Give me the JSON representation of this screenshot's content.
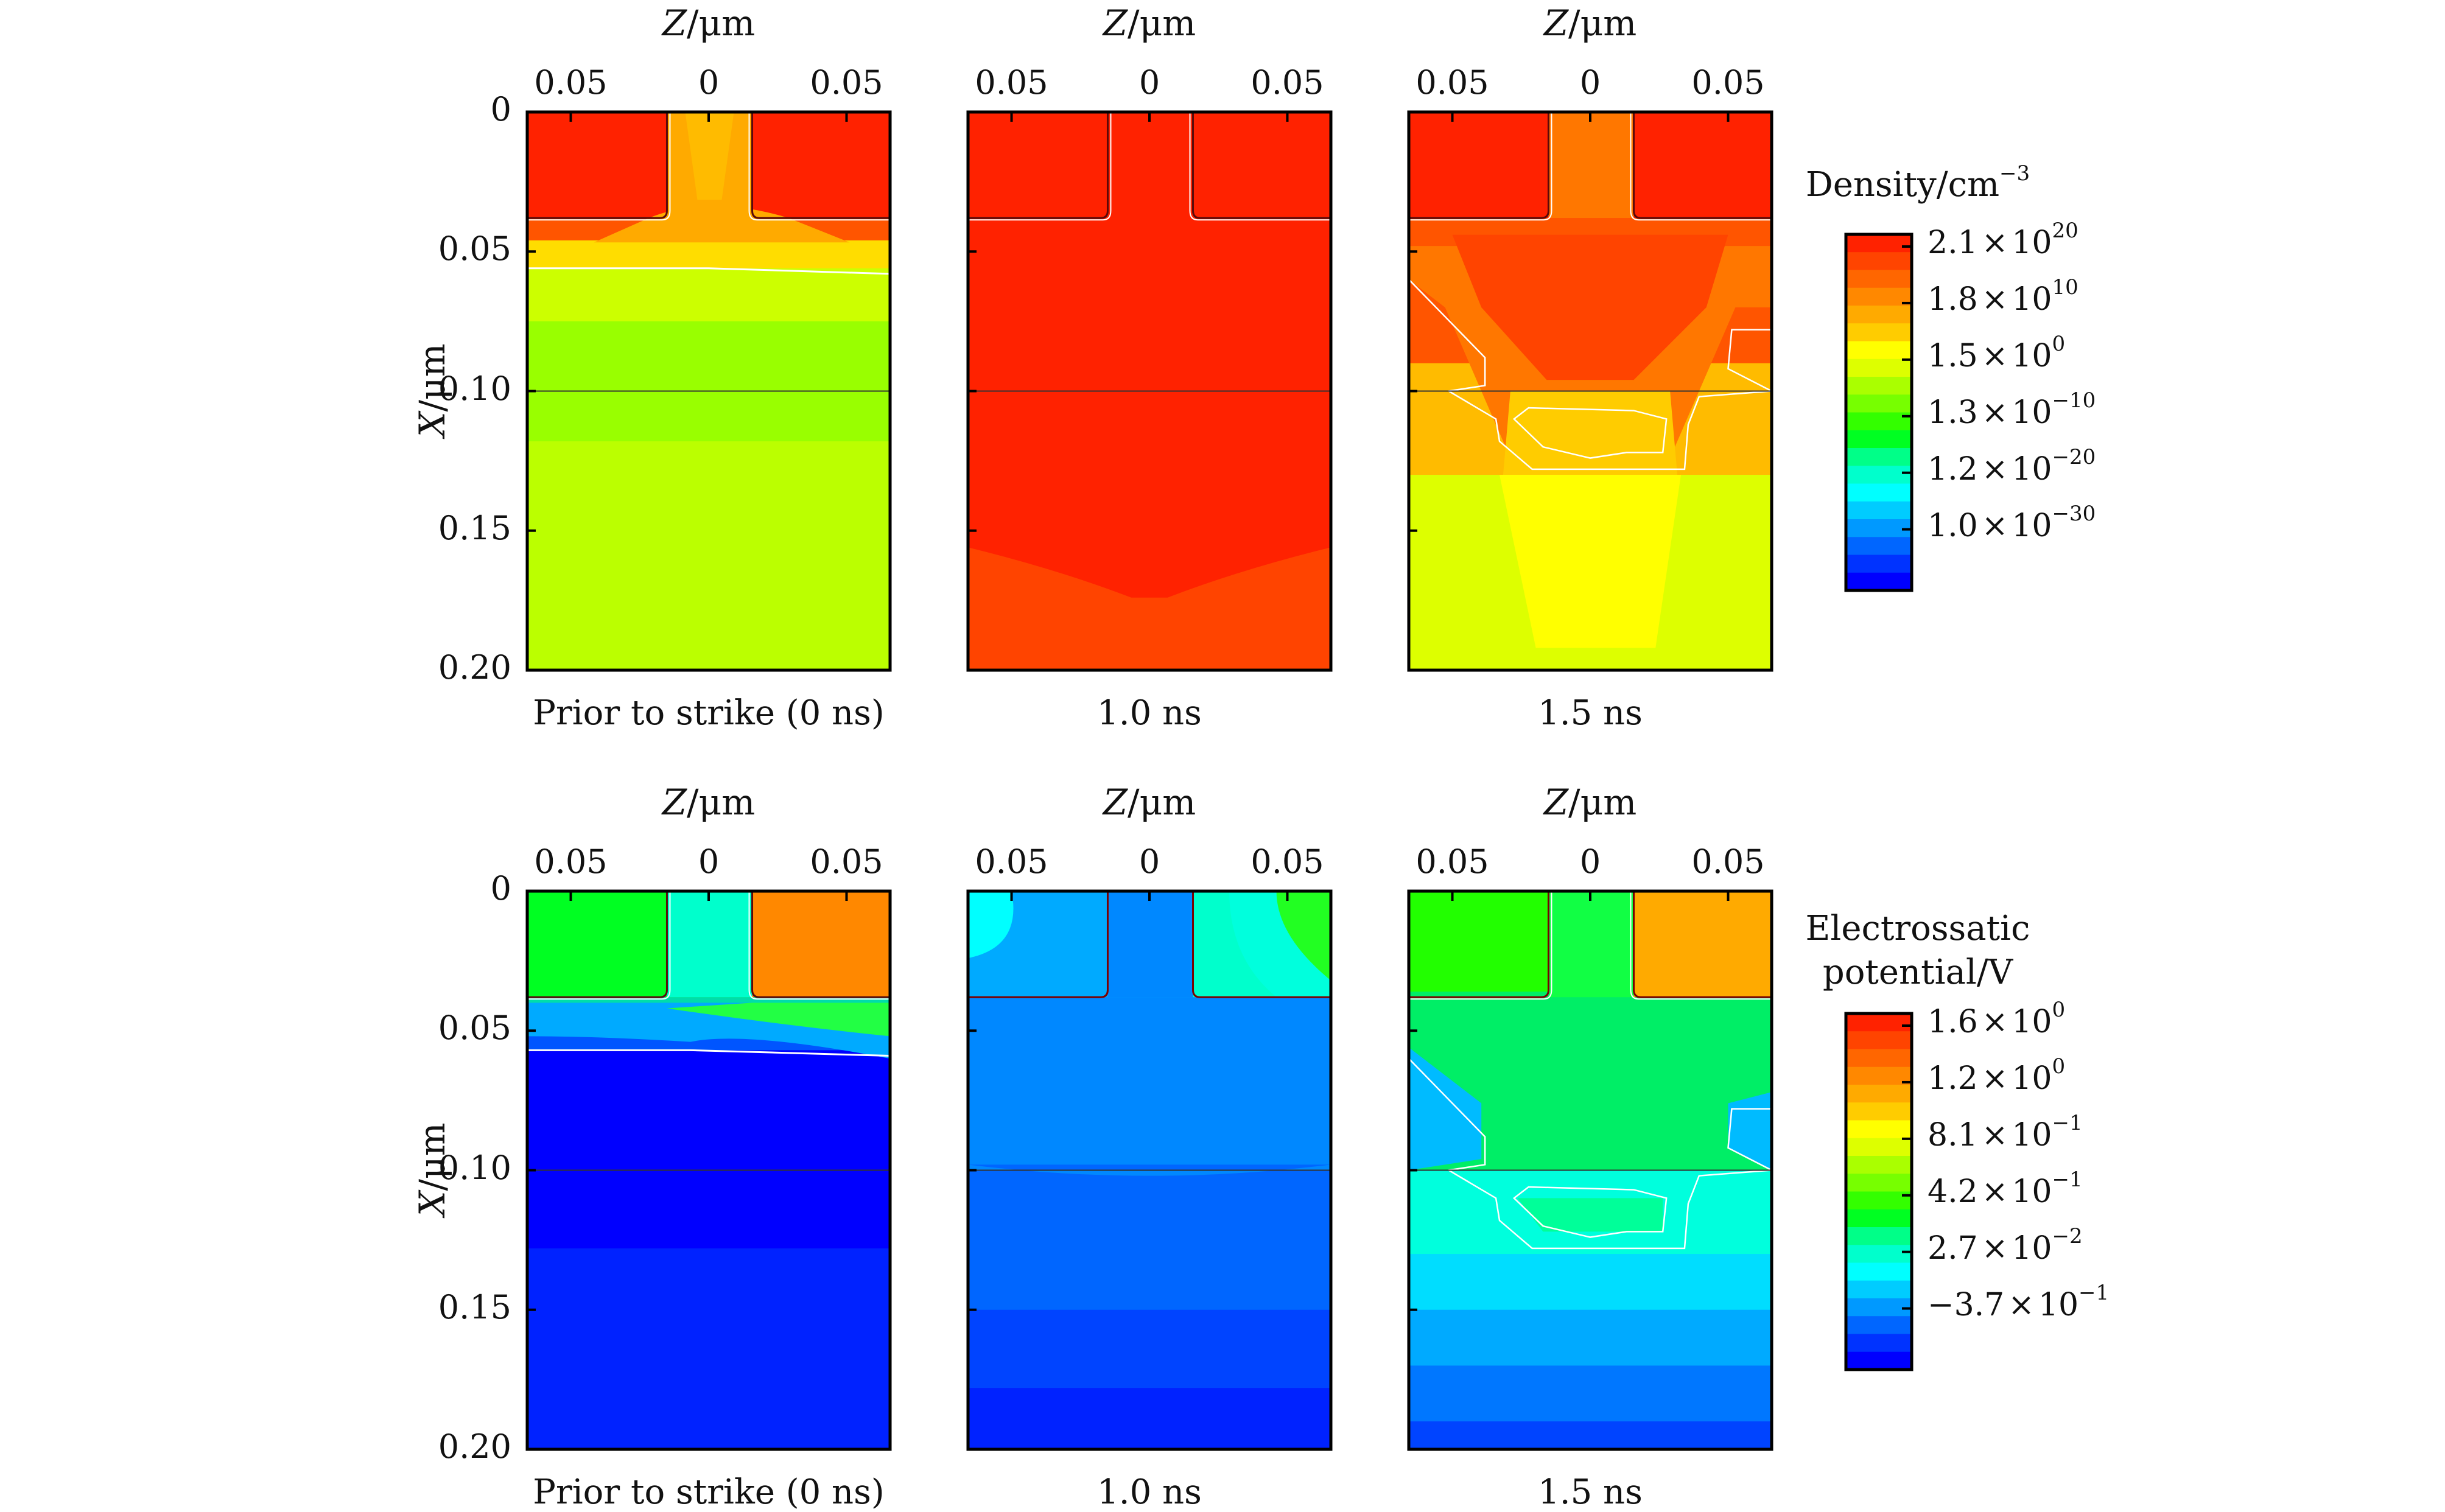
{
  "chart_data": [
    {
      "type": "heatmap",
      "title": "Density",
      "row": "top",
      "colorbar": {
        "label": "Density/cm",
        "label_exponent": "−3",
        "ticks": [
          {
            "mantissa": "2.1",
            "exponent": "20"
          },
          {
            "mantissa": "1.8",
            "exponent": "10"
          },
          {
            "mantissa": "1.5",
            "exponent": "0"
          },
          {
            "mantissa": "1.3",
            "exponent": "−10"
          },
          {
            "mantissa": "1.2",
            "exponent": "−20"
          },
          {
            "mantissa": "1.0",
            "exponent": "−30"
          }
        ],
        "colors": [
          "#ff2200",
          "#ff4400",
          "#ff6600",
          "#ff8800",
          "#ffaa00",
          "#ffcc00",
          "#ffff00",
          "#ddff00",
          "#aaff00",
          "#77ff00",
          "#33ff00",
          "#00ff22",
          "#00ff88",
          "#00ffcc",
          "#00ffff",
          "#00ccff",
          "#0099ff",
          "#0066ff",
          "#0033ff",
          "#0000ff"
        ]
      },
      "xlabel": "Z/μm",
      "ylabel": "X/μm",
      "xticks": [
        "0.05",
        "0",
        "0.05"
      ],
      "yticks": [
        "0",
        "0.05",
        "0.10",
        "0.15",
        "0.20"
      ],
      "ylim": [
        0,
        0.2
      ],
      "panels": [
        {
          "caption": "Prior to strike (0 ns)",
          "state": "prior",
          "bands": [
            {
              "x_from": 0.0,
              "x_to": 0.038,
              "color": "#ff2200",
              "region": "source-drain"
            },
            {
              "x_from": 0.038,
              "x_to": 0.046,
              "color": "#ff5500"
            },
            {
              "x_from": 0.046,
              "x_to": 0.056,
              "color": "#ffdd00"
            },
            {
              "x_from": 0.056,
              "x_to": 0.075,
              "color": "#ccff00"
            },
            {
              "x_from": 0.075,
              "x_to": 0.118,
              "color": "#99ff00"
            },
            {
              "x_from": 0.118,
              "x_to": 0.2,
              "color": "#bbff00"
            }
          ],
          "channel_color": "#ffaa00"
        },
        {
          "caption": "1.0 ns",
          "state": "1.0ns",
          "bands": [
            {
              "x_from": 0.0,
              "x_to": 0.155,
              "color": "#ff2200"
            },
            {
              "x_from": 0.155,
              "x_to": 0.2,
              "color": "#ff4400"
            }
          ],
          "channel_color": "#ff2200"
        },
        {
          "caption": "1.5 ns",
          "state": "1.5ns",
          "bands": [
            {
              "x_from": 0.0,
              "x_to": 0.038,
              "color": "#ff2200"
            },
            {
              "x_from": 0.038,
              "x_to": 0.09,
              "color": "#ff5500"
            },
            {
              "x_from": 0.09,
              "x_to": 0.13,
              "color": "#ffbb00"
            },
            {
              "x_from": 0.13,
              "x_to": 0.2,
              "color": "#ddff00"
            }
          ],
          "channel_color": "#ff7700"
        }
      ]
    },
    {
      "type": "heatmap",
      "title": "Electrostatic potential",
      "row": "bottom",
      "colorbar": {
        "label_line1": "Electrossatic",
        "label_line2": "potential/V",
        "ticks": [
          {
            "mantissa": "1.6",
            "exponent": "0"
          },
          {
            "mantissa": "1.2",
            "exponent": "0"
          },
          {
            "mantissa": "8.1",
            "exponent": "−1"
          },
          {
            "mantissa": "4.2",
            "exponent": "−1"
          },
          {
            "mantissa": "2.7",
            "exponent": "−2"
          },
          {
            "mantissa": "−3.7",
            "exponent": "−1"
          }
        ],
        "colors": [
          "#ff2200",
          "#ff4400",
          "#ff6600",
          "#ff8800",
          "#ffaa00",
          "#ffcc00",
          "#ffff00",
          "#ddff00",
          "#aaff00",
          "#77ff00",
          "#33ff00",
          "#00ff22",
          "#00ff88",
          "#00ffcc",
          "#00ffff",
          "#00ccff",
          "#0099ff",
          "#0066ff",
          "#0033ff",
          "#0000ff"
        ]
      },
      "xlabel": "Z/μm",
      "ylabel": "X/μm",
      "xticks": [
        "0.05",
        "0",
        "0.05"
      ],
      "yticks": [
        "0",
        "0.05",
        "0.10",
        "0.15",
        "0.20"
      ],
      "ylim": [
        0,
        0.2
      ],
      "panels": [
        {
          "caption": "Prior to strike (0 ns)",
          "state": "prior",
          "bands": [
            {
              "x_from": 0.0,
              "x_to": 0.038,
              "color": "#00ff22",
              "region": "left"
            },
            {
              "x_from": 0.038,
              "x_to": 0.045,
              "color": "#00ddaa"
            },
            {
              "x_from": 0.045,
              "x_to": 0.057,
              "color": "#0055ff"
            },
            {
              "x_from": 0.057,
              "x_to": 0.128,
              "color": "#0000ff"
            },
            {
              "x_from": 0.128,
              "x_to": 0.2,
              "color": "#0022ff"
            }
          ],
          "right_color": "#ff8800",
          "channel_color": "#00ffcc"
        },
        {
          "caption": "1.0 ns",
          "state": "1.0ns",
          "bands": [
            {
              "x_from": 0.0,
              "x_to": 0.038,
              "color": "#00aaff"
            },
            {
              "x_from": 0.038,
              "x_to": 0.098,
              "color": "#0088ff"
            },
            {
              "x_from": 0.098,
              "x_to": 0.15,
              "color": "#0066ff"
            },
            {
              "x_from": 0.15,
              "x_to": 0.178,
              "color": "#0044ff"
            },
            {
              "x_from": 0.178,
              "x_to": 0.2,
              "color": "#0022ff"
            }
          ],
          "right_color": "#00ffcc",
          "channel_color": "#0088ff"
        },
        {
          "caption": "1.5 ns",
          "state": "1.5ns",
          "bands": [
            {
              "x_from": 0.0,
              "x_to": 0.036,
              "color": "#22ff00"
            },
            {
              "x_from": 0.036,
              "x_to": 0.1,
              "color": "#00ee66"
            },
            {
              "x_from": 0.1,
              "x_to": 0.13,
              "color": "#00ffdd"
            },
            {
              "x_from": 0.13,
              "x_to": 0.15,
              "color": "#00ddff"
            },
            {
              "x_from": 0.15,
              "x_to": 0.17,
              "color": "#00aaff"
            },
            {
              "x_from": 0.17,
              "x_to": 0.19,
              "color": "#0077ff"
            },
            {
              "x_from": 0.19,
              "x_to": 0.2,
              "color": "#0044ff"
            }
          ],
          "right_color": "#ffaa00",
          "channel_color": "#11ff44"
        }
      ]
    }
  ],
  "times_sign": "×",
  "base": "10"
}
